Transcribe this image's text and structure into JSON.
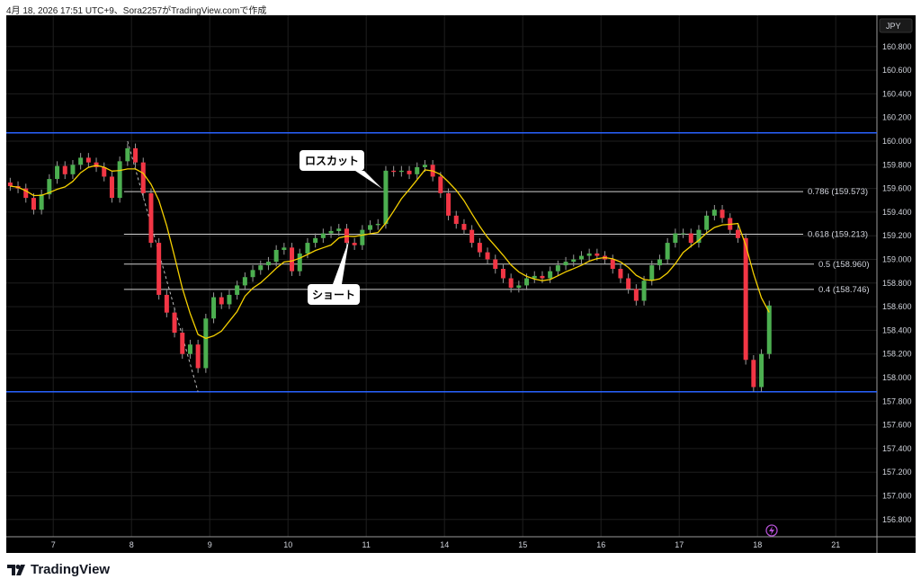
{
  "header": {
    "caption": "4月 18, 2026 17:51 UTC+9、Sora2257がTradingView.comで作成"
  },
  "brand": {
    "name": "TradingView"
  },
  "chart_data": {
    "type": "candlestick",
    "currency": "JPY",
    "ylim": [
      156.7,
      160.9
    ],
    "y_ticks": [
      "160.800",
      "160.600",
      "160.400",
      "160.200",
      "160.000",
      "159.800",
      "159.600",
      "159.400",
      "159.200",
      "159.000",
      "158.800",
      "158.600",
      "158.400",
      "158.200",
      "158.000",
      "157.800",
      "157.600",
      "157.400",
      "157.200",
      "157.000",
      "156.800"
    ],
    "x_ticks": [
      {
        "label": "7",
        "index": 5.5
      },
      {
        "label": "8",
        "index": 15.5
      },
      {
        "label": "9",
        "index": 25.5
      },
      {
        "label": "10",
        "index": 35.5
      },
      {
        "label": "11",
        "index": 45.5
      },
      {
        "label": "14",
        "index": 55.5
      },
      {
        "label": "15",
        "index": 65.5
      },
      {
        "label": "16",
        "index": 75.5
      },
      {
        "label": "17",
        "index": 85.5
      },
      {
        "label": "18",
        "index": 95.5
      },
      {
        "label": "21",
        "index": 105.5
      }
    ],
    "closes": [
      159.62,
      159.6,
      159.52,
      159.42,
      159.55,
      159.68,
      159.79,
      159.72,
      159.8,
      159.86,
      159.82,
      159.78,
      159.7,
      159.52,
      159.83,
      159.94,
      159.82,
      159.56,
      159.14,
      158.7,
      158.55,
      158.38,
      158.2,
      158.28,
      158.08,
      158.5,
      158.68,
      158.62,
      158.7,
      158.78,
      158.85,
      158.91,
      158.95,
      158.98,
      159.08,
      159.1,
      158.9,
      159.05,
      159.14,
      159.18,
      159.22,
      159.24,
      159.26,
      159.14,
      159.12,
      159.25,
      159.29,
      159.3,
      159.75,
      159.74,
      159.75,
      159.72,
      159.78,
      159.8,
      159.7,
      159.56,
      159.37,
      159.3,
      159.25,
      159.14,
      159.06,
      159.0,
      158.92,
      158.84,
      158.76,
      158.78,
      158.84,
      158.86,
      158.84,
      158.9,
      158.95,
      158.98,
      159.0,
      159.03,
      159.05,
      159.03,
      159.0,
      158.92,
      158.84,
      158.75,
      158.65,
      158.82,
      158.95,
      159.0,
      159.14,
      159.22,
      159.22,
      159.14,
      159.25,
      159.37,
      159.42,
      159.35,
      159.25,
      159.18,
      158.15,
      157.92,
      158.2,
      158.61
    ],
    "horizontal_lines": [
      {
        "price": 160.07,
        "color": "#2962ff"
      },
      {
        "price": 157.88,
        "color": "#2962ff"
      }
    ],
    "fib_levels": [
      {
        "label": "0.786 (159.573)",
        "price": 159.573
      },
      {
        "label": "0.618 (159.213)",
        "price": 159.213
      },
      {
        "label": "0.5 (158.960)",
        "price": 158.96
      },
      {
        "label": "0.4 (158.746)",
        "price": 158.746
      }
    ],
    "trend_line": {
      "from": {
        "index": 15,
        "price": 160.0
      },
      "to": {
        "index": 24,
        "price": 157.88
      }
    },
    "annotations": [
      {
        "text": "ロスカット",
        "index": 47.5,
        "price": 159.57
      },
      {
        "text": "ショート",
        "index": 43.5,
        "price": 159.17
      }
    ],
    "colors": {
      "up": "#4caf50",
      "down": "#f23645",
      "ma": "#f5d000",
      "background": "#000000",
      "grid": "#1e1e1e",
      "fib": "#cfcfcf"
    }
  }
}
